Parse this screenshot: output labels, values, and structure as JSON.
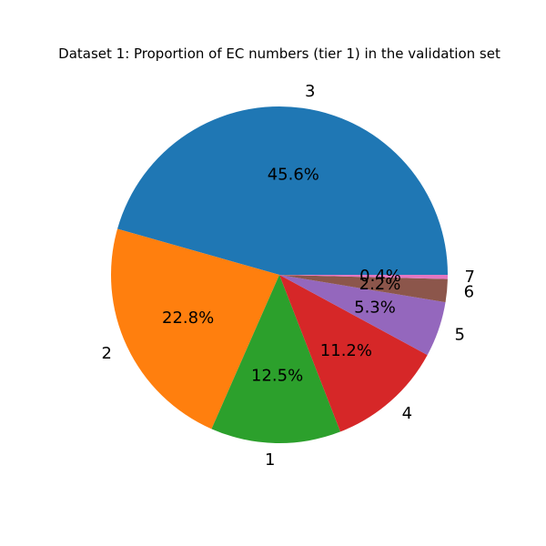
{
  "chart_data": {
    "type": "pie",
    "title": "Dataset 1: Proportion of EC numbers (tier 1) in the validation set",
    "start_angle_deg": 0,
    "direction": "counterclockwise",
    "slices": [
      {
        "category": "3",
        "percent": 45.6,
        "label": "45.6%",
        "color": "#1f77b4"
      },
      {
        "category": "2",
        "percent": 22.8,
        "label": "22.8%",
        "color": "#ff7f0e"
      },
      {
        "category": "1",
        "percent": 12.5,
        "label": "12.5%",
        "color": "#2ca02c"
      },
      {
        "category": "4",
        "percent": 11.2,
        "label": "11.2%",
        "color": "#d62728"
      },
      {
        "category": "5",
        "percent": 5.3,
        "label": "5.3%",
        "color": "#9467bd"
      },
      {
        "category": "6",
        "percent": 2.2,
        "label": "2.2%",
        "color": "#8c564b"
      },
      {
        "category": "7",
        "percent": 0.4,
        "label": "0.4%",
        "color": "#e377c2"
      }
    ]
  }
}
